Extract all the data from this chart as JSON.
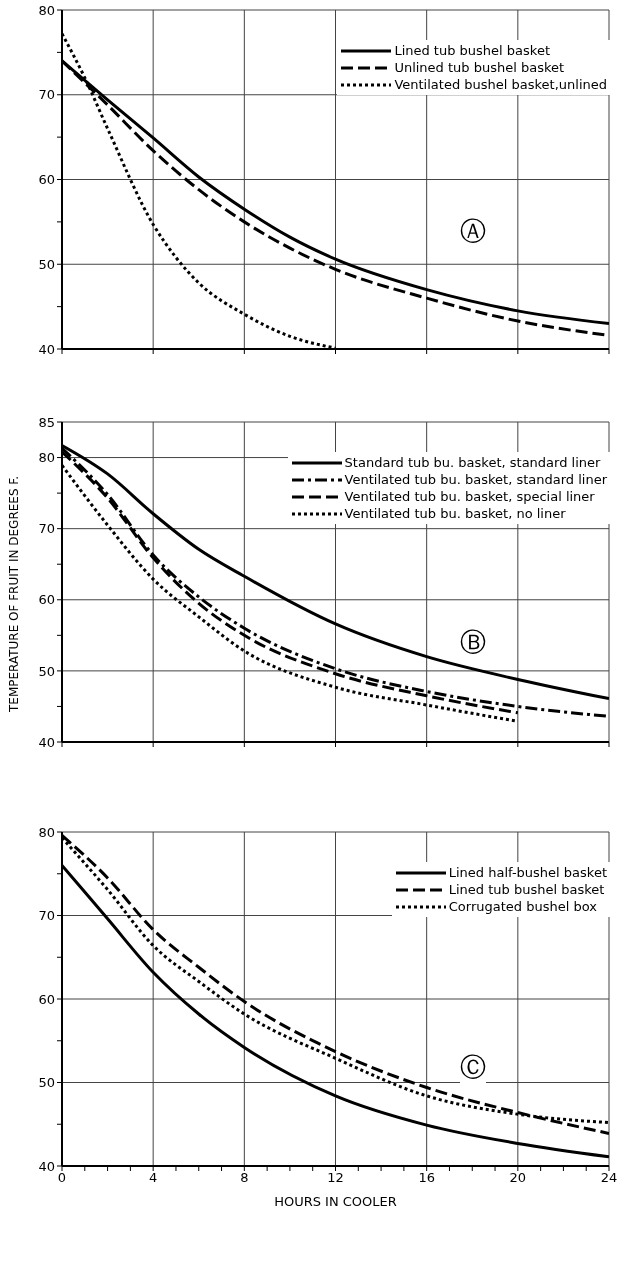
{
  "chart_data": [
    {
      "type": "line",
      "annotations": [
        "Ⓐ"
      ],
      "xlim": [
        0,
        24
      ],
      "xticks": [
        0,
        4,
        8,
        12,
        16,
        20,
        24
      ],
      "ylim": [
        40,
        80
      ],
      "yticks": [
        40,
        {
          "value": 45,
          "label": null
        },
        50,
        {
          "value": 55,
          "label": null
        },
        60,
        {
          "value": 65,
          "label": null
        },
        70,
        {
          "value": 75,
          "label": null
        },
        80
      ],
      "tick_labels": "y",
      "grid": true,
      "legend": "top right",
      "marker": "none",
      "series": [
        {
          "name": "Lined tub bushel basket",
          "color": "#000000",
          "line_style": "solid",
          "x": [
            0,
            2,
            4,
            6,
            8,
            10,
            12,
            16,
            20,
            24
          ],
          "values": [
            74,
            69.4,
            64.9,
            60.3,
            56.5,
            53.2,
            50.6,
            47.0,
            44.5,
            43.0
          ]
        },
        {
          "name": "Unlined tub bushel basket",
          "color": "#000000",
          "line_style": "dashed",
          "x": [
            0,
            2,
            4,
            6,
            8,
            10,
            12,
            16,
            20,
            24
          ],
          "values": [
            74,
            68.8,
            63.4,
            58.8,
            55,
            51.9,
            49.4,
            46,
            43.3,
            41.6
          ]
        },
        {
          "name": "Ventilated bushel basket,unlined",
          "color": "#000000",
          "line_style": "dotted",
          "x": [
            0,
            1,
            2,
            4,
            5,
            6,
            8,
            10,
            12
          ],
          "values": [
            77.2,
            72,
            66,
            54.7,
            50.8,
            47.8,
            44.1,
            41.5,
            40.1
          ]
        }
      ]
    },
    {
      "type": "line",
      "ylabel": "TEMPERATURE OF FRUIT IN DEGREES F.",
      "annotations": [
        "Ⓑ"
      ],
      "xlim": [
        0,
        24
      ],
      "xticks": [
        0,
        4,
        8,
        12,
        16,
        20,
        24
      ],
      "ylim": [
        40,
        85
      ],
      "yticks": [
        40,
        {
          "value": 45,
          "label": null
        },
        50,
        {
          "value": 55,
          "label": null
        },
        60,
        {
          "value": 65,
          "label": null
        },
        70,
        {
          "value": 75,
          "label": null
        },
        80,
        85
      ],
      "tick_labels": "y",
      "grid": true,
      "legend": "top right",
      "marker": "none",
      "series": [
        {
          "name": "Standard tub bu. basket, standard liner",
          "color": "#000000",
          "line_style": "solid",
          "x": [
            0,
            2,
            4,
            6,
            8,
            12,
            16,
            20,
            24
          ],
          "values": [
            81.7,
            77.7,
            72.1,
            67.1,
            63.3,
            56.6,
            52,
            48.8,
            46.1
          ]
        },
        {
          "name": "Ventilated tub bu. basket, standard liner",
          "color": "#000000",
          "line_style": "dashdot",
          "x": [
            0,
            2,
            4,
            6,
            8,
            12,
            16,
            20,
            24
          ],
          "values": [
            81.3,
            74.8,
            66.3,
            60.4,
            56,
            50.3,
            47.1,
            45,
            43.6
          ]
        },
        {
          "name": "Ventilated tub bu. basket, special liner",
          "color": "#000000",
          "line_style": "dashed",
          "x": [
            0,
            2,
            4,
            6,
            8,
            12,
            16,
            20
          ],
          "values": [
            80.8,
            74.3,
            65.9,
            59.5,
            55,
            49.6,
            46.5,
            44.1
          ]
        },
        {
          "name": "Ventilated tub bu. basket, no liner",
          "color": "#000000",
          "line_style": "dotted",
          "x": [
            0,
            2,
            4,
            6,
            8,
            12,
            16,
            20
          ],
          "values": [
            78.9,
            70.5,
            62.9,
            57.6,
            52.8,
            47.7,
            45.2,
            42.9
          ]
        }
      ]
    },
    {
      "type": "line",
      "xlabel": "HOURS IN COOLER",
      "annotations": [
        "Ⓒ"
      ],
      "xlim": [
        0,
        24
      ],
      "xticks": [
        0,
        {
          "value": 1,
          "label": null
        },
        {
          "value": 2,
          "label": null
        },
        {
          "value": 3,
          "label": null
        },
        4,
        {
          "value": 5,
          "label": null
        },
        {
          "value": 6,
          "label": null
        },
        {
          "value": 7,
          "label": null
        },
        8,
        {
          "value": 9,
          "label": null
        },
        {
          "value": 10,
          "label": null
        },
        {
          "value": 11,
          "label": null
        },
        12,
        {
          "value": 13,
          "label": null
        },
        {
          "value": 14,
          "label": null
        },
        {
          "value": 15,
          "label": null
        },
        16,
        {
          "value": 17,
          "label": null
        },
        {
          "value": 18,
          "label": null
        },
        {
          "value": 19,
          "label": null
        },
        20,
        {
          "value": 21,
          "label": null
        },
        {
          "value": 22,
          "label": null
        },
        {
          "value": 23,
          "label": null
        },
        24
      ],
      "ylim": [
        40,
        80
      ],
      "yticks": [
        40,
        {
          "value": 45,
          "label": null
        },
        50,
        {
          "value": 55,
          "label": null
        },
        60,
        {
          "value": 65,
          "label": null
        },
        70,
        {
          "value": 75,
          "label": null
        },
        80
      ],
      "grid": true,
      "legend": "top right",
      "marker": "none",
      "series": [
        {
          "name": "Lined half-bushel basket",
          "color": "#000000",
          "line_style": "solid",
          "x": [
            0,
            2,
            4,
            6,
            8,
            12,
            16,
            20,
            24
          ],
          "values": [
            76,
            69.6,
            63.2,
            58.2,
            54.2,
            48.4,
            44.9,
            42.7,
            41.1
          ]
        },
        {
          "name": "Lined tub bushel basket",
          "color": "#000000",
          "line_style": "dashed",
          "x": [
            0,
            2,
            4,
            6,
            8,
            12,
            16,
            20,
            24
          ],
          "values": [
            79.6,
            74.5,
            68.3,
            63.8,
            59.7,
            53.7,
            49.4,
            46.4,
            43.9
          ]
        },
        {
          "name": "Corrugated bushel box",
          "color": "#000000",
          "line_style": "dotted",
          "x": [
            0,
            2,
            4,
            6,
            8,
            12,
            16,
            20,
            24
          ],
          "values": [
            79.3,
            73.1,
            66.4,
            62.1,
            58.2,
            52.9,
            48.4,
            46.2,
            45.2
          ]
        }
      ]
    }
  ]
}
